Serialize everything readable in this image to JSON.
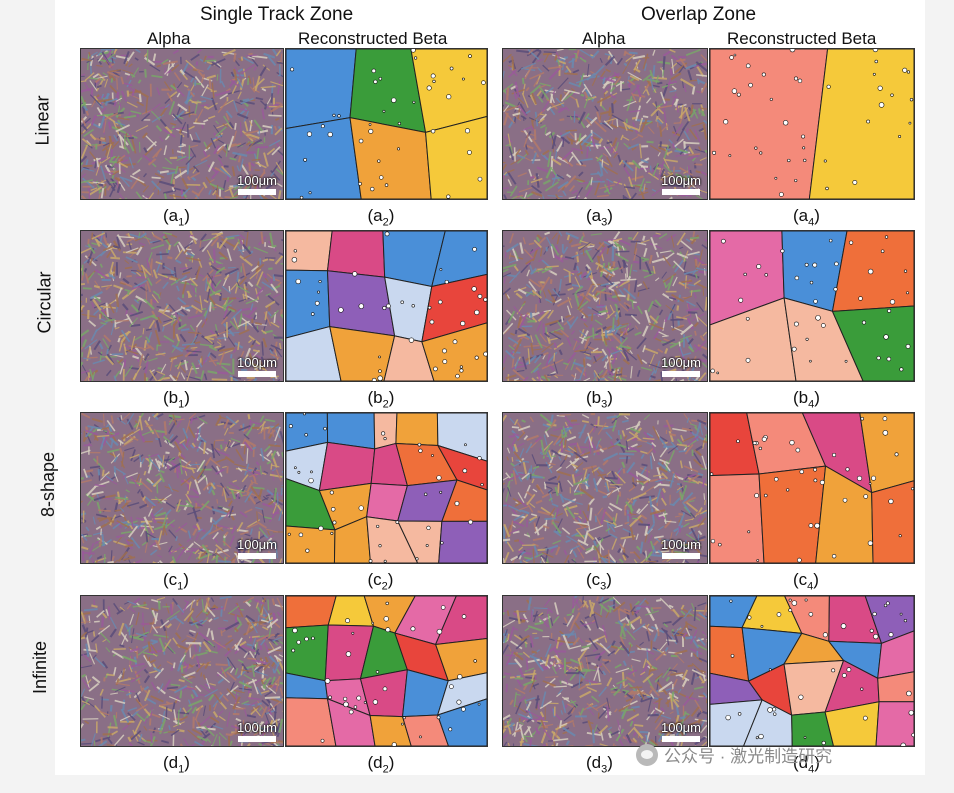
{
  "zones": [
    "Single Track Zone",
    "Overlap Zone"
  ],
  "column_heads": [
    "Alpha",
    "Reconstructed Beta",
    "Alpha",
    "Reconstructed Beta"
  ],
  "rows": [
    {
      "label": "Linear",
      "captions": [
        [
          "(a",
          "1",
          ")"
        ],
        [
          "(a",
          "2",
          ")"
        ],
        [
          "(a",
          "3",
          ")"
        ],
        [
          "(a",
          "4",
          ")"
        ]
      ]
    },
    {
      "label": "Circular",
      "captions": [
        [
          "(b",
          "1",
          ")"
        ],
        [
          "(b",
          "2",
          ")"
        ],
        [
          "(b",
          "3",
          ")"
        ],
        [
          "(b",
          "4",
          ")"
        ]
      ]
    },
    {
      "label": "8-shape",
      "captions": [
        [
          "(c",
          "1",
          ")"
        ],
        [
          "(c",
          "2",
          ")"
        ],
        [
          "(c",
          "3",
          ")"
        ],
        [
          "(c",
          "4",
          ")"
        ]
      ]
    },
    {
      "label": "Infinite",
      "captions": [
        [
          "(d",
          "1",
          ")"
        ],
        [
          "(d",
          "2",
          ")"
        ],
        [
          "(d",
          "3",
          ")"
        ],
        [
          "(d",
          "4",
          ")"
        ]
      ]
    }
  ],
  "scale_bar_label": "100μm",
  "watermark": "公众号 · 激光制造研究",
  "grain_palette": [
    "#e8453c",
    "#f5c93a",
    "#3a9c3a",
    "#8e5fb8",
    "#f48a7a",
    "#e46aa6",
    "#f0a23a",
    "#4a8fd8",
    "#f5b9a0",
    "#c9d8ef",
    "#d94a86",
    "#ef6f3a"
  ]
}
